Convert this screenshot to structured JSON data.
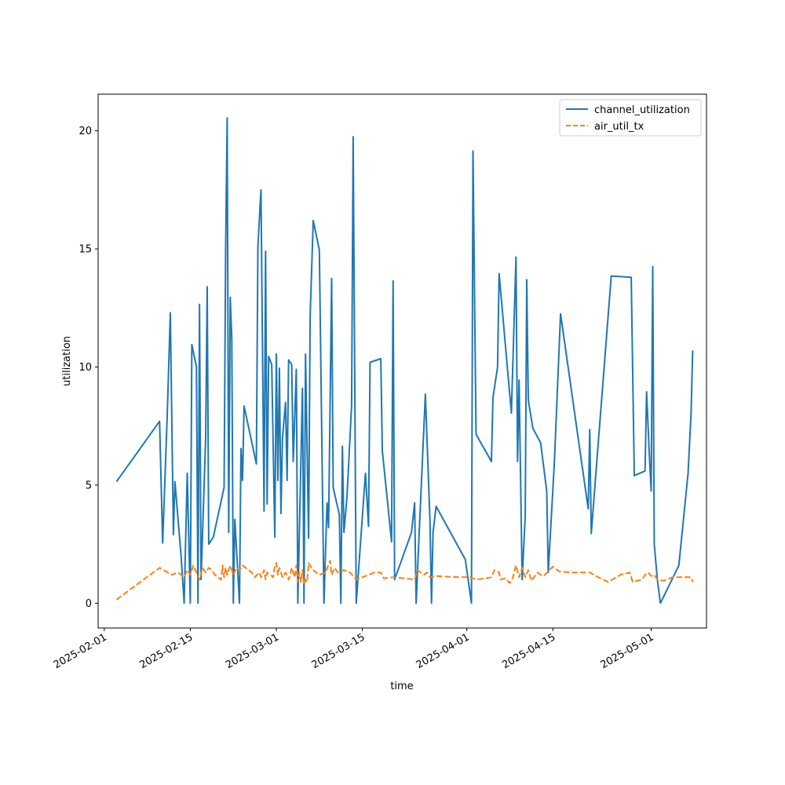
{
  "chart_data": {
    "type": "line",
    "title": "",
    "xlabel": "time",
    "ylabel": "utilization",
    "xlim": [
      "2025-01-31",
      "2025-05-10"
    ],
    "ylim": [
      -1.05,
      21.55
    ],
    "x_tick_labels": [
      "2025-02-01",
      "2025-02-15",
      "2025-03-01",
      "2025-03-15",
      "2025-04-01",
      "2025-04-15",
      "2025-05-01"
    ],
    "y_tick_labels": [
      "0",
      "5",
      "10",
      "15",
      "20"
    ],
    "y_ticks": [
      0,
      5,
      10,
      15,
      20
    ],
    "grid": false,
    "legend_position": "top-right",
    "series": [
      {
        "name": "channel_utilization",
        "color": "#1f77b4",
        "dash": "solid",
        "points": [
          [
            "2025-02-03",
            5.15
          ],
          [
            "2025-02-10",
            7.7
          ],
          [
            "2025-02-10 12:00",
            2.55
          ],
          [
            "2025-02-11 06:00",
            8.0
          ],
          [
            "2025-02-11 18:00",
            12.3
          ],
          [
            "2025-02-12 06:00",
            2.9
          ],
          [
            "2025-02-12 12:00",
            5.15
          ],
          [
            "2025-02-13 12:00",
            2.0
          ],
          [
            "2025-02-14",
            0.0
          ],
          [
            "2025-02-14 12:00",
            5.5
          ],
          [
            "2025-02-15",
            0.0
          ],
          [
            "2025-02-15 06:00",
            10.95
          ],
          [
            "2025-02-16",
            10.0
          ],
          [
            "2025-02-16 06:00",
            0.0
          ],
          [
            "2025-02-16 12:00",
            12.65
          ],
          [
            "2025-02-16 18:00",
            1.0
          ],
          [
            "2025-02-17 12:00",
            7.0
          ],
          [
            "2025-02-17 18:00",
            13.4
          ],
          [
            "2025-02-18",
            2.5
          ],
          [
            "2025-02-18 18:00",
            2.8
          ],
          [
            "2025-02-20 12:00",
            4.9
          ],
          [
            "2025-02-20 18:00",
            15.0
          ],
          [
            "2025-02-21",
            20.55
          ],
          [
            "2025-02-21 06:00",
            3.0
          ],
          [
            "2025-02-21 12:00",
            12.95
          ],
          [
            "2025-02-21 18:00",
            11.2
          ],
          [
            "2025-02-22",
            0.0
          ],
          [
            "2025-02-22 06:00",
            3.55
          ],
          [
            "2025-02-23",
            0.0
          ],
          [
            "2025-02-23 06:00",
            6.55
          ],
          [
            "2025-02-23 12:00",
            5.2
          ],
          [
            "2025-02-23 18:00",
            8.35
          ],
          [
            "2025-02-25 18:00",
            5.9
          ],
          [
            "2025-02-26",
            15.1
          ],
          [
            "2025-02-26 12:00",
            17.5
          ],
          [
            "2025-02-27",
            3.9
          ],
          [
            "2025-02-27 06:00",
            14.9
          ],
          [
            "2025-02-27 12:00",
            4.2
          ],
          [
            "2025-02-27 18:00",
            10.45
          ],
          [
            "2025-02-28 06:00",
            10.1
          ],
          [
            "2025-02-28 18:00",
            2.8
          ],
          [
            "2025-03-01",
            10.55
          ],
          [
            "2025-03-01 06:00",
            5.2
          ],
          [
            "2025-03-01 12:00",
            9.95
          ],
          [
            "2025-03-01 18:00",
            3.8
          ],
          [
            "2025-03-02",
            7.0
          ],
          [
            "2025-03-02 12:00",
            8.5
          ],
          [
            "2025-03-02 18:00",
            5.2
          ],
          [
            "2025-03-03",
            10.3
          ],
          [
            "2025-03-03 12:00",
            10.1
          ],
          [
            "2025-03-03 18:00",
            6.0
          ],
          [
            "2025-03-04 06:00",
            9.9
          ],
          [
            "2025-03-04 12:00",
            0.0
          ],
          [
            "2025-03-05 06:00",
            9.1
          ],
          [
            "2025-03-05 12:00",
            0.0
          ],
          [
            "2025-03-05 18:00",
            10.55
          ],
          [
            "2025-03-06 06:00",
            2.75
          ],
          [
            "2025-03-06 12:00",
            12.1
          ],
          [
            "2025-03-07",
            16.2
          ],
          [
            "2025-03-08",
            14.95
          ],
          [
            "2025-03-08 18:00",
            0.0
          ],
          [
            "2025-03-09 06:00",
            4.25
          ],
          [
            "2025-03-09 12:00",
            3.2
          ],
          [
            "2025-03-10",
            13.75
          ],
          [
            "2025-03-10 06:00",
            4.9
          ],
          [
            "2025-03-11 06:00",
            3.75
          ],
          [
            "2025-03-11 12:00",
            0.0
          ],
          [
            "2025-03-11 18:00",
            6.65
          ],
          [
            "2025-03-12",
            3.0
          ],
          [
            "2025-03-12 12:00",
            4.5
          ],
          [
            "2025-03-13 06:00",
            8.4
          ],
          [
            "2025-03-13 12:00",
            19.75
          ],
          [
            "2025-03-14",
            0.0
          ],
          [
            "2025-03-15 12:00",
            5.5
          ],
          [
            "2025-03-16",
            3.25
          ],
          [
            "2025-03-16 06:00",
            10.2
          ],
          [
            "2025-03-18",
            10.35
          ],
          [
            "2025-03-18 06:00",
            6.45
          ],
          [
            "2025-03-19 18:00",
            2.6
          ],
          [
            "2025-03-20",
            13.65
          ],
          [
            "2025-03-20 06:00",
            1.0
          ],
          [
            "2025-03-23",
            3.0
          ],
          [
            "2025-03-23 12:00",
            4.25
          ],
          [
            "2025-03-23 18:00",
            0.0
          ],
          [
            "2025-03-24 06:00",
            3.0
          ],
          [
            "2025-03-25 06:00",
            8.85
          ],
          [
            "2025-03-26",
            3.5
          ],
          [
            "2025-03-26 06:00",
            0.0
          ],
          [
            "2025-03-26 12:00",
            3.0
          ],
          [
            "2025-03-27",
            4.1
          ],
          [
            "2025-03-31 18:00",
            1.85
          ],
          [
            "2025-04-01 18:00",
            0.0
          ],
          [
            "2025-04-02",
            19.15
          ],
          [
            "2025-04-02 12:00",
            7.15
          ],
          [
            "2025-04-05",
            6.0
          ],
          [
            "2025-04-05 06:00",
            8.7
          ],
          [
            "2025-04-06",
            10.0
          ],
          [
            "2025-04-06 06:00",
            13.95
          ],
          [
            "2025-04-08 06:00",
            8.05
          ],
          [
            "2025-04-09",
            14.65
          ],
          [
            "2025-04-09 06:00",
            6.0
          ],
          [
            "2025-04-09 12:00",
            9.45
          ],
          [
            "2025-04-10",
            1.0
          ],
          [
            "2025-04-10 12:00",
            3.7
          ],
          [
            "2025-04-10 18:00",
            13.7
          ],
          [
            "2025-04-11",
            8.6
          ],
          [
            "2025-04-11 18:00",
            7.4
          ],
          [
            "2025-04-13",
            6.8
          ],
          [
            "2025-04-14",
            4.75
          ],
          [
            "2025-04-14 06:00",
            1.3
          ],
          [
            "2025-04-15 06:00",
            6.0
          ],
          [
            "2025-04-16 06:00",
            12.25
          ],
          [
            "2025-04-20 18:00",
            4.0
          ],
          [
            "2025-04-21",
            7.35
          ],
          [
            "2025-04-21 06:00",
            2.95
          ],
          [
            "2025-04-22",
            5.5
          ],
          [
            "2025-04-24 12:00",
            13.85
          ],
          [
            "2025-04-27 18:00",
            13.8
          ],
          [
            "2025-04-28 06:00",
            5.4
          ],
          [
            "2025-04-30",
            5.6
          ],
          [
            "2025-04-30 06:00",
            8.95
          ],
          [
            "2025-04-30 18:00",
            6.0
          ],
          [
            "2025-05-01",
            4.75
          ],
          [
            "2025-05-01 06:00",
            14.25
          ],
          [
            "2025-05-01 12:00",
            2.5
          ],
          [
            "2025-05-02",
            1.0
          ],
          [
            "2025-05-02 12:00",
            0.0
          ],
          [
            "2025-05-05 12:00",
            1.6
          ],
          [
            "2025-05-07",
            5.5
          ],
          [
            "2025-05-07 12:00",
            8.1
          ],
          [
            "2025-05-07 18:00",
            10.7
          ]
        ]
      },
      {
        "name": "air_util_tx",
        "color": "#ff7f0e",
        "dash": "dashed",
        "points": [
          [
            "2025-02-03",
            0.15
          ],
          [
            "2025-02-10",
            1.5
          ],
          [
            "2025-02-12",
            1.2
          ],
          [
            "2025-02-13",
            1.3
          ],
          [
            "2025-02-14",
            1.1
          ],
          [
            "2025-02-14 12:00",
            1.4
          ],
          [
            "2025-02-15",
            1.2
          ],
          [
            "2025-02-15 12:00",
            1.6
          ],
          [
            "2025-02-16",
            1.3
          ],
          [
            "2025-02-16 12:00",
            1.0
          ],
          [
            "2025-02-17",
            1.5
          ],
          [
            "2025-02-17 12:00",
            1.3
          ],
          [
            "2025-02-18",
            1.5
          ],
          [
            "2025-02-18 12:00",
            1.4
          ],
          [
            "2025-02-19",
            1.2
          ],
          [
            "2025-02-20",
            1.0
          ],
          [
            "2025-02-20 06:00",
            1.6
          ],
          [
            "2025-02-20 12:00",
            1.1
          ],
          [
            "2025-02-20 18:00",
            1.5
          ],
          [
            "2025-02-21",
            1.2
          ],
          [
            "2025-02-21 12:00",
            1.6
          ],
          [
            "2025-02-22",
            1.2
          ],
          [
            "2025-02-22 12:00",
            1.5
          ],
          [
            "2025-02-23",
            1.4
          ],
          [
            "2025-02-23 12:00",
            1.6
          ],
          [
            "2025-02-24",
            1.5
          ],
          [
            "2025-02-25",
            1.3
          ],
          [
            "2025-02-25 12:00",
            1.1
          ],
          [
            "2025-02-26 06:00",
            1.3
          ],
          [
            "2025-02-26 12:00",
            1.1
          ],
          [
            "2025-02-27",
            1.4
          ],
          [
            "2025-02-27 06:00",
            1.0
          ],
          [
            "2025-02-27 12:00",
            1.3
          ],
          [
            "2025-02-28",
            1.2
          ],
          [
            "2025-02-28 12:00",
            1.1
          ],
          [
            "2025-02-28 18:00",
            1.6
          ],
          [
            "2025-03-01",
            1.7
          ],
          [
            "2025-03-01 06:00",
            1.2
          ],
          [
            "2025-03-01 12:00",
            1.5
          ],
          [
            "2025-03-02",
            1.1
          ],
          [
            "2025-03-02 12:00",
            1.3
          ],
          [
            "2025-03-03",
            1.0
          ],
          [
            "2025-03-03 06:00",
            1.2
          ],
          [
            "2025-03-03 12:00",
            1.5
          ],
          [
            "2025-03-04",
            1.1
          ],
          [
            "2025-03-04 06:00",
            1.6
          ],
          [
            "2025-03-04 12:00",
            0.9
          ],
          [
            "2025-03-04 18:00",
            1.3
          ],
          [
            "2025-03-05",
            0.9
          ],
          [
            "2025-03-05 06:00",
            1.4
          ],
          [
            "2025-03-05 12:00",
            0.8
          ],
          [
            "2025-03-05 18:00",
            1.0
          ],
          [
            "2025-03-06",
            0.9
          ],
          [
            "2025-03-06 06:00",
            1.7
          ],
          [
            "2025-03-06 12:00",
            1.6
          ],
          [
            "2025-03-07",
            1.4
          ],
          [
            "2025-03-08",
            1.2
          ],
          [
            "2025-03-09",
            1.3
          ],
          [
            "2025-03-09 18:00",
            1.8
          ],
          [
            "2025-03-10",
            1.2
          ],
          [
            "2025-03-10 12:00",
            1.5
          ],
          [
            "2025-03-11",
            1.3
          ],
          [
            "2025-03-12",
            1.4
          ],
          [
            "2025-03-13",
            1.3
          ],
          [
            "2025-03-14",
            1.0
          ],
          [
            "2025-03-15",
            1.1
          ],
          [
            "2025-03-16",
            1.2
          ],
          [
            "2025-03-17",
            1.3
          ],
          [
            "2025-03-18",
            1.3
          ],
          [
            "2025-03-18 12:00",
            1.05
          ],
          [
            "2025-03-20",
            1.1
          ],
          [
            "2025-03-22",
            1.05
          ],
          [
            "2025-03-23 12:00",
            1.0
          ],
          [
            "2025-03-24",
            1.4
          ],
          [
            "2025-03-25",
            1.2
          ],
          [
            "2025-03-25 12:00",
            1.3
          ],
          [
            "2025-03-26",
            1.1
          ],
          [
            "2025-03-27",
            1.15
          ],
          [
            "2025-03-31",
            1.1
          ],
          [
            "2025-04-01 12:00",
            1.1
          ],
          [
            "2025-04-02 12:00",
            1.0
          ],
          [
            "2025-04-04",
            1.05
          ],
          [
            "2025-04-05",
            1.1
          ],
          [
            "2025-04-05 12:00",
            1.4
          ],
          [
            "2025-04-06 06:00",
            1.3
          ],
          [
            "2025-04-06 12:00",
            1.0
          ],
          [
            "2025-04-07 06:00",
            1.05
          ],
          [
            "2025-04-08",
            0.85
          ],
          [
            "2025-04-08 12:00",
            1.1
          ],
          [
            "2025-04-09",
            1.6
          ],
          [
            "2025-04-09 12:00",
            1.1
          ],
          [
            "2025-04-10",
            1.5
          ],
          [
            "2025-04-10 12:00",
            1.1
          ],
          [
            "2025-04-11",
            1.4
          ],
          [
            "2025-04-11 12:00",
            0.95
          ],
          [
            "2025-04-12 12:00",
            1.3
          ],
          [
            "2025-04-13",
            1.2
          ],
          [
            "2025-04-13 12:00",
            1.15
          ],
          [
            "2025-04-15",
            1.55
          ],
          [
            "2025-04-16",
            1.35
          ],
          [
            "2025-04-18",
            1.3
          ],
          [
            "2025-04-21",
            1.3
          ],
          [
            "2025-04-22",
            1.15
          ],
          [
            "2025-04-24",
            0.9
          ],
          [
            "2025-04-26",
            1.2
          ],
          [
            "2025-04-27 12:00",
            1.3
          ],
          [
            "2025-04-28",
            0.9
          ],
          [
            "2025-04-29 12:00",
            1.0
          ],
          [
            "2025-04-30",
            1.2
          ],
          [
            "2025-04-30 12:00",
            1.3
          ],
          [
            "2025-05-01",
            1.15
          ],
          [
            "2025-05-01 12:00",
            1.2
          ],
          [
            "2025-05-02",
            1.0
          ],
          [
            "2025-05-03",
            0.95
          ],
          [
            "2025-05-04 12:00",
            1.1
          ],
          [
            "2025-05-06",
            1.1
          ],
          [
            "2025-05-07 12:00",
            1.1
          ],
          [
            "2025-05-07 18:00",
            0.9
          ]
        ]
      }
    ]
  }
}
